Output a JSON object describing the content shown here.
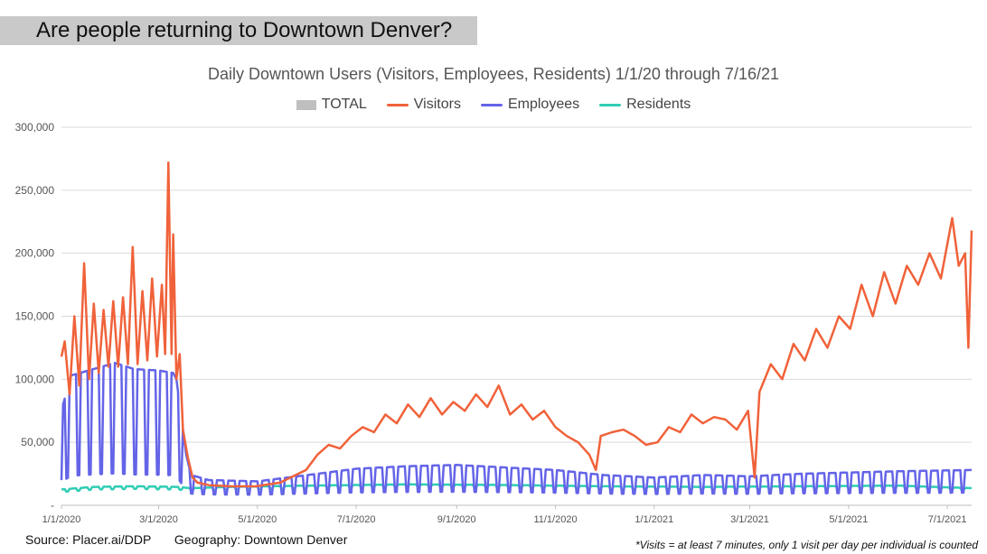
{
  "banner": {
    "text": "Are people returning to Downtown Denver?"
  },
  "footer": {
    "source": "Source: Placer.ai/DDP",
    "geography": "Geography: Downtown Denver",
    "footnote": "*Visits = at least 7 minutes, only 1 visit per day per individual is counted"
  },
  "colors": {
    "total": "#bfbfbf",
    "visitors": "#f0623a",
    "employees": "#6464e8",
    "residents": "#2fcdb4"
  },
  "chart_data": {
    "type": "line",
    "title": "Daily Downtown Users (Visitors, Employees, Residents) 1/1/20 through 7/16/21",
    "xlabel": "",
    "ylabel": "",
    "x_start": "2020-01-01",
    "x_end": "2021-07-16",
    "ylim": [
      0,
      300000
    ],
    "y_ticks": [
      "-",
      "50,000",
      "100,000",
      "150,000",
      "200,000",
      "250,000",
      "300,000"
    ],
    "x_ticks": [
      {
        "date": "2020-01-01",
        "label": "1/1/2020"
      },
      {
        "date": "2020-03-01",
        "label": "3/1/2020"
      },
      {
        "date": "2020-05-01",
        "label": "5/1/2020"
      },
      {
        "date": "2020-07-01",
        "label": "7/1/2020"
      },
      {
        "date": "2020-09-01",
        "label": "9/1/2020"
      },
      {
        "date": "2020-11-01",
        "label": "11/1/2020"
      },
      {
        "date": "2021-01-01",
        "label": "1/1/2021"
      },
      {
        "date": "2021-03-01",
        "label": "3/1/2021"
      },
      {
        "date": "2021-05-01",
        "label": "5/1/2021"
      },
      {
        "date": "2021-07-01",
        "label": "7/1/2021"
      }
    ],
    "grid": true,
    "legend_position": "top-center",
    "series": [
      {
        "name": "TOTAL",
        "values": []
      },
      {
        "name": "Visitors",
        "points": [
          [
            "2020-01-01",
            118000
          ],
          [
            "2020-01-03",
            130000
          ],
          [
            "2020-01-06",
            88000
          ],
          [
            "2020-01-09",
            150000
          ],
          [
            "2020-01-12",
            95000
          ],
          [
            "2020-01-15",
            192000
          ],
          [
            "2020-01-18",
            100000
          ],
          [
            "2020-01-21",
            160000
          ],
          [
            "2020-01-24",
            105000
          ],
          [
            "2020-01-27",
            155000
          ],
          [
            "2020-01-30",
            110000
          ],
          [
            "2020-02-02",
            162000
          ],
          [
            "2020-02-05",
            110000
          ],
          [
            "2020-02-08",
            165000
          ],
          [
            "2020-02-11",
            112000
          ],
          [
            "2020-02-14",
            205000
          ],
          [
            "2020-02-17",
            112000
          ],
          [
            "2020-02-20",
            170000
          ],
          [
            "2020-02-23",
            115000
          ],
          [
            "2020-02-26",
            180000
          ],
          [
            "2020-02-29",
            118000
          ],
          [
            "2020-03-03",
            175000
          ],
          [
            "2020-03-05",
            120000
          ],
          [
            "2020-03-07",
            272000
          ],
          [
            "2020-03-09",
            120000
          ],
          [
            "2020-03-10",
            215000
          ],
          [
            "2020-03-12",
            100000
          ],
          [
            "2020-03-14",
            120000
          ],
          [
            "2020-03-16",
            60000
          ],
          [
            "2020-03-19",
            38000
          ],
          [
            "2020-03-22",
            22000
          ],
          [
            "2020-03-25",
            18000
          ],
          [
            "2020-04-01",
            16000
          ],
          [
            "2020-04-15",
            15000
          ],
          [
            "2020-04-30",
            15000
          ],
          [
            "2020-05-15",
            18000
          ],
          [
            "2020-05-31",
            28000
          ],
          [
            "2020-06-07",
            40000
          ],
          [
            "2020-06-14",
            48000
          ],
          [
            "2020-06-21",
            45000
          ],
          [
            "2020-06-28",
            55000
          ],
          [
            "2020-07-05",
            62000
          ],
          [
            "2020-07-12",
            58000
          ],
          [
            "2020-07-19",
            72000
          ],
          [
            "2020-07-26",
            65000
          ],
          [
            "2020-08-02",
            80000
          ],
          [
            "2020-08-09",
            70000
          ],
          [
            "2020-08-16",
            85000
          ],
          [
            "2020-08-23",
            72000
          ],
          [
            "2020-08-30",
            82000
          ],
          [
            "2020-09-06",
            75000
          ],
          [
            "2020-09-13",
            88000
          ],
          [
            "2020-09-20",
            78000
          ],
          [
            "2020-09-27",
            95000
          ],
          [
            "2020-10-04",
            72000
          ],
          [
            "2020-10-11",
            80000
          ],
          [
            "2020-10-18",
            68000
          ],
          [
            "2020-10-25",
            75000
          ],
          [
            "2020-11-01",
            62000
          ],
          [
            "2020-11-08",
            55000
          ],
          [
            "2020-11-15",
            50000
          ],
          [
            "2020-11-22",
            40000
          ],
          [
            "2020-11-26",
            28000
          ],
          [
            "2020-11-29",
            55000
          ],
          [
            "2020-12-06",
            58000
          ],
          [
            "2020-12-13",
            60000
          ],
          [
            "2020-12-20",
            55000
          ],
          [
            "2020-12-27",
            48000
          ],
          [
            "2021-01-03",
            50000
          ],
          [
            "2021-01-10",
            62000
          ],
          [
            "2021-01-17",
            58000
          ],
          [
            "2021-01-24",
            72000
          ],
          [
            "2021-01-31",
            65000
          ],
          [
            "2021-02-07",
            70000
          ],
          [
            "2021-02-14",
            68000
          ],
          [
            "2021-02-21",
            60000
          ],
          [
            "2021-02-28",
            75000
          ],
          [
            "2021-03-04",
            22000
          ],
          [
            "2021-03-07",
            90000
          ],
          [
            "2021-03-14",
            112000
          ],
          [
            "2021-03-21",
            100000
          ],
          [
            "2021-03-28",
            128000
          ],
          [
            "2021-04-04",
            115000
          ],
          [
            "2021-04-11",
            140000
          ],
          [
            "2021-04-18",
            125000
          ],
          [
            "2021-04-25",
            150000
          ],
          [
            "2021-05-02",
            140000
          ],
          [
            "2021-05-09",
            175000
          ],
          [
            "2021-05-16",
            150000
          ],
          [
            "2021-05-23",
            185000
          ],
          [
            "2021-05-30",
            160000
          ],
          [
            "2021-06-06",
            190000
          ],
          [
            "2021-06-13",
            175000
          ],
          [
            "2021-06-20",
            200000
          ],
          [
            "2021-06-27",
            180000
          ],
          [
            "2021-07-04",
            228000
          ],
          [
            "2021-07-08",
            190000
          ],
          [
            "2021-07-12",
            200000
          ],
          [
            "2021-07-14",
            125000
          ],
          [
            "2021-07-16",
            218000
          ]
        ]
      },
      {
        "name": "Employees",
        "points": [
          [
            "2020-01-01",
            20000
          ],
          [
            "2020-01-02",
            80000
          ],
          [
            "2020-01-07",
            103000
          ],
          [
            "2020-02-03",
            113000
          ],
          [
            "2020-02-15",
            108000
          ],
          [
            "2020-03-01",
            107000
          ],
          [
            "2020-03-10",
            105000
          ],
          [
            "2020-03-12",
            100000
          ],
          [
            "2020-03-15",
            70000
          ],
          [
            "2020-03-18",
            40000
          ],
          [
            "2020-03-21",
            24000
          ],
          [
            "2020-04-01",
            20000
          ],
          [
            "2020-05-01",
            19000
          ],
          [
            "2020-06-01",
            24000
          ],
          [
            "2020-07-01",
            29000
          ],
          [
            "2020-08-01",
            31000
          ],
          [
            "2020-09-01",
            32000
          ],
          [
            "2020-10-01",
            30000
          ],
          [
            "2020-11-01",
            28000
          ],
          [
            "2020-12-01",
            24000
          ],
          [
            "2021-01-01",
            22000
          ],
          [
            "2021-02-01",
            24000
          ],
          [
            "2021-03-01",
            23000
          ],
          [
            "2021-04-01",
            25000
          ],
          [
            "2021-05-01",
            26000
          ],
          [
            "2021-06-01",
            27000
          ],
          [
            "2021-07-16",
            28000
          ]
        ]
      },
      {
        "name": "Residents",
        "points": [
          [
            "2020-01-01",
            12000
          ],
          [
            "2020-01-21",
            14000
          ],
          [
            "2020-02-15",
            14500
          ],
          [
            "2020-03-13",
            14000
          ],
          [
            "2020-03-20",
            13000
          ],
          [
            "2020-04-15",
            14000
          ],
          [
            "2020-06-01",
            15000
          ],
          [
            "2020-08-01",
            16000
          ],
          [
            "2020-10-01",
            15500
          ],
          [
            "2020-12-01",
            14500
          ],
          [
            "2021-02-01",
            14000
          ],
          [
            "2021-04-01",
            14500
          ],
          [
            "2021-06-01",
            15000
          ],
          [
            "2021-07-16",
            13000
          ]
        ]
      }
    ]
  }
}
